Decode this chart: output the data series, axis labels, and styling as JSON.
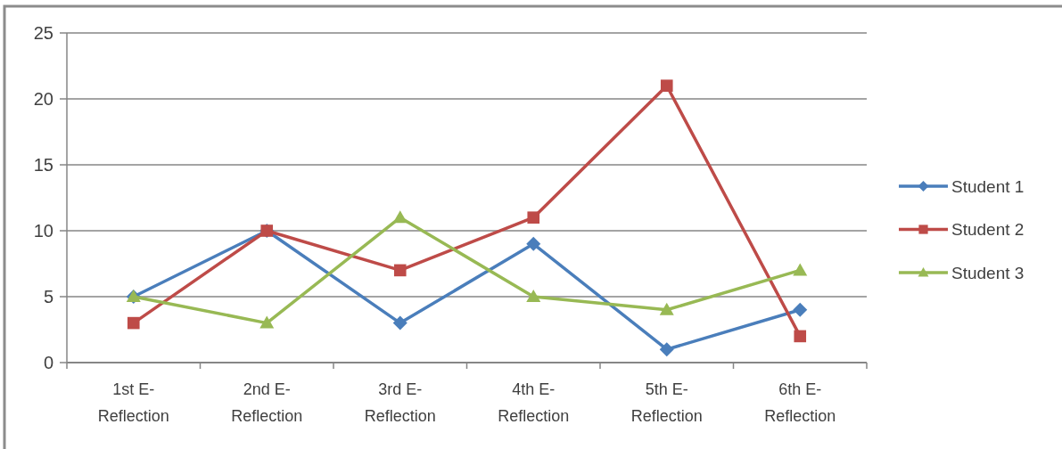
{
  "chart_data": {
    "type": "line",
    "categories": [
      "1st E-Reflection",
      "2nd E-Reflection",
      "3rd E-Reflection",
      "4th E-Reflection",
      "5th E-Reflection",
      "6th E-Reflection"
    ],
    "series": [
      {
        "name": "Student 1",
        "color": "#4a7ebb",
        "marker": "diamond",
        "values": [
          5,
          10,
          3,
          9,
          1,
          4
        ]
      },
      {
        "name": "Student 2",
        "color": "#be4b48",
        "marker": "square",
        "values": [
          3,
          10,
          7,
          11,
          21,
          2
        ]
      },
      {
        "name": "Student 3",
        "color": "#98b954",
        "marker": "triangle",
        "values": [
          5,
          3,
          11,
          5,
          4,
          7
        ]
      }
    ],
    "ylim": [
      0,
      25
    ],
    "yticks": [
      0,
      5,
      10,
      15,
      20,
      25
    ],
    "grid": "y",
    "legend": "right",
    "line_style": "solid"
  }
}
